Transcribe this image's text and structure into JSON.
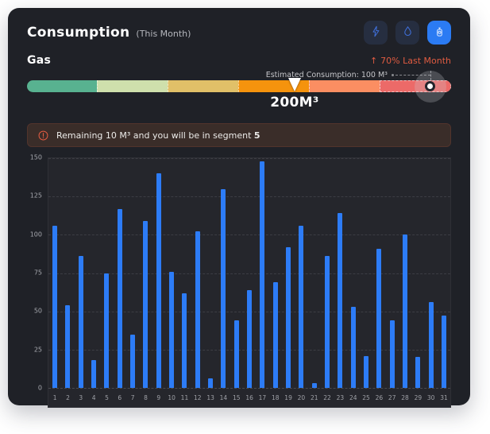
{
  "header": {
    "title": "Consumption",
    "subtitle": "(This Month)",
    "actions": [
      {
        "label": "electricity",
        "icon": "bolt-icon",
        "active": false
      },
      {
        "label": "water",
        "icon": "water-drop-icon",
        "active": false
      },
      {
        "label": "gas",
        "icon": "gas-cylinder-icon",
        "active": true
      }
    ]
  },
  "gas": {
    "label": "Gas",
    "trend_arrow": "↑",
    "trend_text": "70% Last Month",
    "trend_color": "#df5b41"
  },
  "gauge": {
    "estimate_label": "Estimated Consumption: 100 M³",
    "current_label": "200M³",
    "current_position_pct": 63.1,
    "estimate_position_pct": 95.1,
    "segments": [
      "#58b290",
      "#cfe0ac",
      "#e1c068",
      "#f5930d",
      "#fb8e62",
      "#ec6a68"
    ]
  },
  "alert": {
    "icon": "warning-icon",
    "message": "Remaining 10 M³ and you will be in segment",
    "segment": "5",
    "accent_color": "#df5b41"
  },
  "chart_data": {
    "type": "bar",
    "title": "",
    "xlabel": "",
    "ylabel": "",
    "categories": [
      "1",
      "2",
      "3",
      "4",
      "5",
      "6",
      "7",
      "8",
      "9",
      "10",
      "11",
      "12",
      "13",
      "14",
      "15",
      "16",
      "17",
      "18",
      "19",
      "20",
      "21",
      "22",
      "23",
      "24",
      "25",
      "26",
      "27",
      "28",
      "29",
      "30",
      "31"
    ],
    "values": [
      106,
      54,
      86,
      18,
      75,
      117,
      35,
      109,
      140,
      76,
      62,
      102,
      6,
      130,
      44,
      64,
      148,
      69,
      92,
      106,
      3,
      86,
      114,
      53,
      21,
      91,
      44,
      100,
      20,
      56,
      47
    ],
    "ylim": [
      0,
      150
    ],
    "yticks": [
      0,
      25,
      50,
      75,
      100,
      125,
      150
    ],
    "bar_color": "#2d7cf7",
    "grid": "dashed-horizontal",
    "legend": "none"
  }
}
